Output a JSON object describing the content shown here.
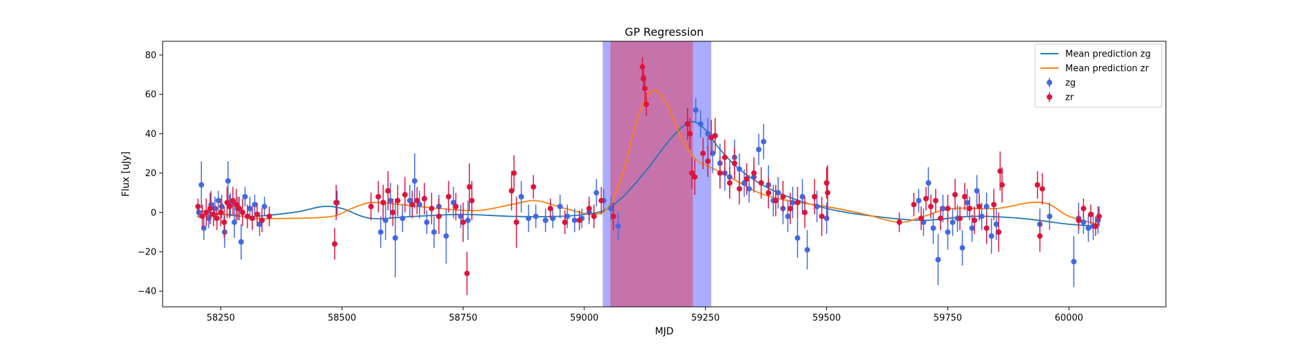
{
  "chart_data": {
    "type": "scatter",
    "title": "GP Regression",
    "xlabel": "MJD",
    "ylabel": "Flux [uJy]",
    "xlim": [
      58130,
      60200
    ],
    "ylim": [
      -48,
      87
    ],
    "xticks": [
      58250,
      58500,
      58750,
      59000,
      59250,
      59500,
      59750,
      60000
    ],
    "yticks": [
      -40,
      -20,
      0,
      20,
      40,
      60,
      80
    ],
    "grid": false,
    "legend_position": "top-right",
    "colors": {
      "zg_line": "#1f77b4",
      "zr_line": "#ff7f0e",
      "zg_points": "#4169e1",
      "zr_points": "#dc143c",
      "band_zg": "#0000ff",
      "band_zr": "#ff0000"
    },
    "shaded_regions": [
      {
        "band": "zg",
        "x_start": 59038,
        "x_end": 59262
      },
      {
        "band": "zr",
        "x_start": 59054,
        "x_end": 59224
      }
    ],
    "series": [
      {
        "name": "Mean prediction zg",
        "kind": "line",
        "x": [
          58200,
          58300,
          58400,
          58460,
          58500,
          58560,
          58650,
          58750,
          58850,
          58950,
          59000,
          59040,
          59080,
          59130,
          59180,
          59220,
          59250,
          59280,
          59330,
          59400,
          59500,
          59600,
          59700,
          59800,
          59900,
          60000,
          60060
        ],
        "y": [
          1,
          -2,
          0,
          3,
          2,
          -3,
          -2,
          -1,
          -2,
          -2,
          -1,
          1,
          8,
          22,
          38,
          46,
          42,
          32,
          20,
          10,
          2,
          -2,
          -4,
          -2,
          -3,
          -6,
          -7
        ]
      },
      {
        "name": "Mean prediction zr",
        "kind": "line",
        "x": [
          58200,
          58270,
          58320,
          58400,
          58480,
          58520,
          58560,
          58620,
          58700,
          58780,
          58850,
          58900,
          58960,
          59020,
          59050,
          59080,
          59110,
          59140,
          59170,
          59200,
          59230,
          59260,
          59300,
          59360,
          59420,
          59500,
          59580,
          59650,
          59700,
          59760,
          59850,
          59920,
          59960,
          60000,
          60060
        ],
        "y": [
          -2,
          -1,
          -3,
          -3,
          -2,
          2,
          5,
          4,
          2,
          1,
          4,
          6,
          2,
          -1,
          3,
          20,
          48,
          62,
          55,
          38,
          27,
          23,
          18,
          10,
          6,
          3,
          -1,
          -5,
          -2,
          2,
          2,
          5,
          4,
          -2,
          -6
        ]
      },
      {
        "name": "zg",
        "kind": "errorbar",
        "x": [
          58205,
          58210,
          58215,
          58225,
          58230,
          58238,
          58245,
          58252,
          58258,
          58265,
          58270,
          58278,
          58285,
          58292,
          58300,
          58310,
          58320,
          58330,
          58340,
          58490,
          58580,
          58590,
          58600,
          58610,
          58625,
          58640,
          58650,
          58660,
          58675,
          58690,
          58700,
          58715,
          58730,
          58745,
          58760,
          58870,
          58885,
          58900,
          58920,
          58935,
          58950,
          58965,
          58980,
          58995,
          59010,
          59025,
          59040,
          59055,
          59070,
          59230,
          59240,
          59255,
          59265,
          59280,
          59290,
          59300,
          59310,
          59320,
          59330,
          59340,
          59350,
          59360,
          59370,
          59380,
          59390,
          59400,
          59410,
          59420,
          59430,
          59440,
          59450,
          59460,
          59480,
          59500,
          59690,
          59700,
          59710,
          59720,
          59730,
          59740,
          59750,
          59760,
          59770,
          59780,
          59790,
          59800,
          59810,
          59820,
          59830,
          59840,
          59850,
          59940,
          59960,
          60010,
          60020,
          60030,
          60040,
          60050,
          60060
        ],
        "y": [
          0,
          14,
          -8,
          -3,
          4,
          2,
          6,
          3,
          -10,
          16,
          4,
          -5,
          2,
          -15,
          8,
          2,
          4,
          -6,
          3,
          5,
          -10,
          -4,
          6,
          -13,
          -3,
          6,
          16,
          4,
          -5,
          -10,
          3,
          -12,
          5,
          -2,
          -4,
          8,
          -3,
          -2,
          -4,
          -3,
          3,
          -2,
          -4,
          -3,
          0,
          10,
          6,
          2,
          -7,
          52,
          45,
          40,
          30,
          25,
          20,
          18,
          28,
          22,
          15,
          12,
          18,
          32,
          36,
          14,
          6,
          10,
          2,
          -2,
          5,
          -13,
          8,
          -19,
          3,
          -3,
          6,
          -5,
          15,
          -8,
          -24,
          2,
          -10,
          -5,
          -3,
          -18,
          5,
          -8,
          11,
          -2,
          3,
          -12,
          -6,
          -6,
          -2,
          -25,
          -3,
          -5,
          -8,
          -7,
          -4
        ],
        "err": [
          3,
          12,
          6,
          5,
          7,
          6,
          5,
          6,
          8,
          10,
          6,
          8,
          6,
          9,
          5,
          6,
          5,
          6,
          5,
          6,
          8,
          10,
          9,
          20,
          7,
          8,
          14,
          7,
          6,
          8,
          6,
          14,
          8,
          6,
          10,
          8,
          7,
          6,
          6,
          5,
          6,
          6,
          6,
          5,
          6,
          7,
          6,
          6,
          7,
          6,
          7,
          8,
          10,
          10,
          9,
          8,
          9,
          8,
          7,
          7,
          8,
          8,
          9,
          10,
          8,
          8,
          8,
          8,
          8,
          10,
          9,
          10,
          8,
          8,
          6,
          7,
          8,
          8,
          13,
          7,
          9,
          7,
          7,
          9,
          7,
          7,
          8,
          7,
          7,
          9,
          8,
          8,
          7,
          13,
          8,
          6,
          7,
          7,
          7
        ]
      },
      {
        "name": "zr",
        "kind": "errorbar",
        "x": [
          58203,
          58212,
          58220,
          58228,
          58235,
          58242,
          58250,
          58257,
          58263,
          58268,
          58275,
          58282,
          58288,
          58295,
          58305,
          58315,
          58325,
          58335,
          58350,
          58485,
          58488,
          58560,
          58575,
          58585,
          58595,
          58605,
          58615,
          58630,
          58645,
          58655,
          58670,
          58685,
          58700,
          58720,
          58735,
          58750,
          58758,
          58763,
          58768,
          58850,
          58855,
          58860,
          58895,
          58930,
          58960,
          58990,
          59010,
          59020,
          59035,
          59060,
          59120,
          59122,
          59125,
          59128,
          59213,
          59218,
          59222,
          59228,
          59245,
          59255,
          59262,
          59270,
          59280,
          59290,
          59300,
          59310,
          59320,
          59335,
          59350,
          59365,
          59380,
          59395,
          59410,
          59425,
          59440,
          59455,
          59475,
          59490,
          59500,
          59502,
          59650,
          59680,
          59695,
          59705,
          59715,
          59725,
          59735,
          59750,
          59765,
          59775,
          59785,
          59795,
          59805,
          59815,
          59830,
          59845,
          59855,
          59858,
          59862,
          59935,
          59940,
          59945,
          60020,
          60030,
          60045,
          60055,
          60062
        ],
        "y": [
          3,
          -2,
          0,
          2,
          -1,
          -3,
          0,
          -5,
          5,
          3,
          6,
          4,
          2,
          0,
          -2,
          -3,
          -1,
          -4,
          -2,
          -16,
          5,
          3,
          8,
          5,
          11,
          0,
          6,
          9,
          4,
          6,
          7,
          2,
          -2,
          8,
          3,
          -5,
          -31,
          13,
          6,
          11,
          20,
          -5,
          13,
          2,
          -5,
          -4,
          2,
          -2,
          6,
          -2,
          74,
          68,
          63,
          55,
          45,
          40,
          20,
          18,
          30,
          26,
          38,
          39,
          20,
          28,
          15,
          25,
          12,
          17,
          20,
          15,
          10,
          6,
          8,
          2,
          5,
          0,
          8,
          -2,
          15,
          10,
          -5,
          4,
          -3,
          7,
          3,
          6,
          -3,
          2,
          9,
          -3,
          8,
          2,
          -4,
          3,
          -8,
          4,
          -10,
          21,
          14,
          14,
          -12,
          12,
          -4,
          2,
          -1,
          -7,
          -2
        ],
        "err": [
          4,
          6,
          7,
          8,
          6,
          6,
          7,
          8,
          8,
          6,
          7,
          8,
          6,
          7,
          6,
          6,
          6,
          6,
          5,
          8,
          9,
          7,
          8,
          9,
          10,
          7,
          8,
          9,
          7,
          7,
          8,
          8,
          9,
          8,
          7,
          10,
          11,
          12,
          10,
          10,
          9,
          13,
          6,
          5,
          6,
          5,
          6,
          6,
          7,
          7,
          5,
          6,
          7,
          6,
          8,
          8,
          8,
          9,
          8,
          8,
          9,
          9,
          8,
          9,
          8,
          8,
          8,
          8,
          8,
          8,
          8,
          8,
          8,
          8,
          8,
          8,
          9,
          10,
          8,
          14,
          5,
          6,
          6,
          6,
          6,
          6,
          6,
          7,
          8,
          6,
          7,
          6,
          7,
          7,
          8,
          8,
          10,
          10,
          9,
          7,
          8,
          8,
          5,
          5,
          5,
          5,
          5
        ]
      }
    ]
  }
}
